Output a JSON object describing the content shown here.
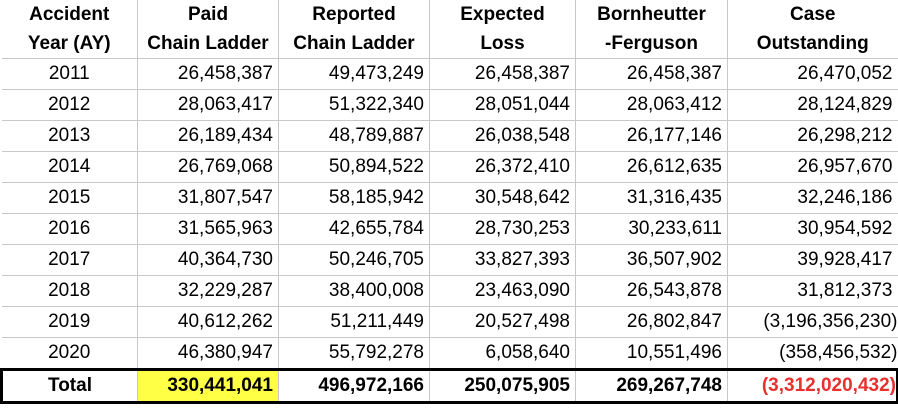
{
  "headers": [
    [
      "Accident",
      "Year (AY)"
    ],
    [
      "Paid",
      "Chain Ladder"
    ],
    [
      "Reported",
      "Chain Ladder"
    ],
    [
      "Expected",
      "Loss"
    ],
    [
      "Bornheutter",
      "-Ferguson"
    ],
    [
      "Case",
      "Outstanding"
    ]
  ],
  "rows": [
    [
      "2011",
      "26,458,387",
      "49,473,249",
      "26,458,387",
      "26,458,387",
      "26,470,052"
    ],
    [
      "2012",
      "28,063,417",
      "51,322,340",
      "28,051,044",
      "28,063,412",
      "28,124,829"
    ],
    [
      "2013",
      "26,189,434",
      "48,789,887",
      "26,038,548",
      "26,177,146",
      "26,298,212"
    ],
    [
      "2014",
      "26,769,068",
      "50,894,522",
      "26,372,410",
      "26,612,635",
      "26,957,670"
    ],
    [
      "2015",
      "31,807,547",
      "58,185,942",
      "30,548,642",
      "31,316,435",
      "32,246,186"
    ],
    [
      "2016",
      "31,565,963",
      "42,655,784",
      "28,730,253",
      "30,233,611",
      "30,954,592"
    ],
    [
      "2017",
      "40,364,730",
      "50,246,705",
      "33,827,393",
      "36,507,902",
      "39,928,417"
    ],
    [
      "2018",
      "32,229,287",
      "38,400,008",
      "23,463,090",
      "26,543,878",
      "31,812,373"
    ],
    [
      "2019",
      "40,612,262",
      "51,211,449",
      "20,527,498",
      "26,802,847",
      "(3,196,356,230)"
    ],
    [
      "2020",
      "46,380,947",
      "55,792,278",
      "6,058,640",
      "10,551,496",
      "(358,456,532)"
    ]
  ],
  "total": [
    "Total",
    "330,441,041",
    "496,972,166",
    "250,075,905",
    "269,267,748",
    "(3,312,020,432)"
  ],
  "colors": {
    "highlight_yellow": "#ffff45",
    "negative_red": "#e8312f",
    "gridline": "#c8c8c8"
  }
}
